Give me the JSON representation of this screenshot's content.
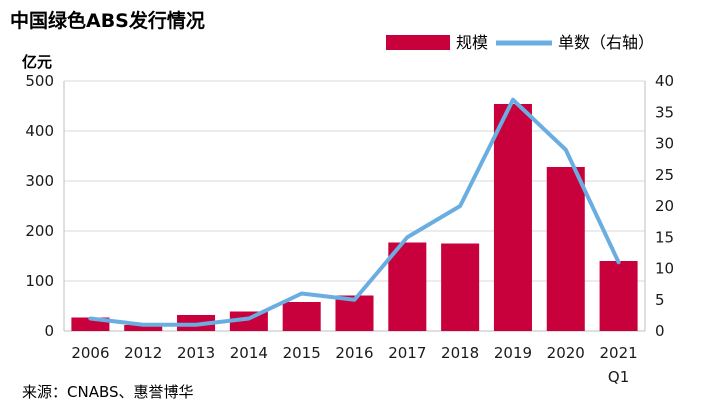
{
  "chart_data": {
    "type": "bar",
    "title": "中国绿色ABS发行情况",
    "ylabel": "亿元",
    "source": "来源：CNABS、惠誉博华",
    "categories": [
      "2006",
      "2012",
      "2013",
      "2014",
      "2015",
      "2016",
      "2017",
      "2018",
      "2019",
      "2020",
      "2021"
    ],
    "category_sub": [
      "",
      "",
      "",
      "",
      "",
      "",
      "",
      "",
      "",
      "",
      "Q1"
    ],
    "ylim_left": [
      0,
      500
    ],
    "left_ticks": [
      "0",
      "100",
      "200",
      "300",
      "400",
      "500"
    ],
    "ylim_right": [
      0,
      40
    ],
    "right_ticks": [
      "0",
      "5",
      "10",
      "15",
      "20",
      "25",
      "30",
      "35",
      "40"
    ],
    "grid": true,
    "legend_position": "top-right",
    "series": [
      {
        "name": "规模",
        "kind": "bar",
        "axis": "left",
        "color": "#c8003c",
        "values": [
          27,
          12,
          32,
          39,
          58,
          71,
          177,
          175,
          454,
          328,
          140
        ]
      },
      {
        "name": "单数（右轴）",
        "kind": "line",
        "axis": "right",
        "color": "#6aaee1",
        "values": [
          2,
          1,
          1,
          2,
          6,
          5,
          15,
          20,
          37,
          29,
          11
        ]
      }
    ]
  }
}
